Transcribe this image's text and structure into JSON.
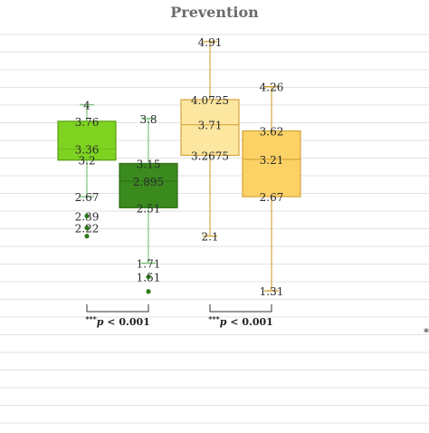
{
  "chart_data": {
    "type": "box",
    "title": "Prevention",
    "xlabel": "",
    "ylabel": "",
    "ylim": [
      0.97,
      4.96
    ],
    "grid": true,
    "boxes": [
      {
        "color": "#7ed321",
        "stroke": "#5aa017",
        "whisker_color": "#7cc47c",
        "labels": [
          "4",
          "3.76",
          "3.36",
          "3.2",
          "2.67",
          "2.39",
          "2.22"
        ],
        "max": 4.0,
        "q3": 3.76,
        "mean": 3.36,
        "median": 3.2,
        "q1": 3.2,
        "lower_whisker_label": 2.67,
        "min": 2.67,
        "outliers": [
          2.39,
          2.22,
          2.1
        ]
      },
      {
        "color": "#3a8a1e",
        "stroke": "#2f6f18",
        "whisker_color": "#7cc47c",
        "labels": [
          "3.8",
          "3.15",
          "2.895",
          "2.51",
          "1.71",
          "1.51"
        ],
        "max": 3.8,
        "q3": 3.15,
        "median": 2.895,
        "q1": 2.51,
        "min": 1.71,
        "outliers": [
          1.51,
          1.3
        ]
      },
      {
        "color": "#fde6a0",
        "stroke": "#d4a53b",
        "whisker_color": "#d4a53b",
        "labels": [
          "4.91",
          "4.0725",
          "3.71",
          "3.2675",
          "2.1"
        ],
        "max": 4.91,
        "q3": 4.0725,
        "median": 3.71,
        "q1": 3.2675,
        "min": 2.1,
        "outliers": []
      },
      {
        "color": "#fcd166",
        "stroke": "#d4a53b",
        "whisker_color": "#d4a53b",
        "labels": [
          "4.26",
          "3.62",
          "3.21",
          "2.67",
          "1.31"
        ],
        "max": 4.26,
        "q3": 3.62,
        "median": 3.21,
        "q1": 2.67,
        "min": 1.31,
        "outliers": []
      }
    ],
    "significance": [
      {
        "label_stars": "***",
        "label_p": "p",
        "label_rest": " < 0.001",
        "pair": [
          0,
          1
        ]
      },
      {
        "label_stars": "***",
        "label_p": "p",
        "label_rest": " < 0.001",
        "pair": [
          2,
          3
        ]
      }
    ],
    "edge_mark": "*"
  }
}
